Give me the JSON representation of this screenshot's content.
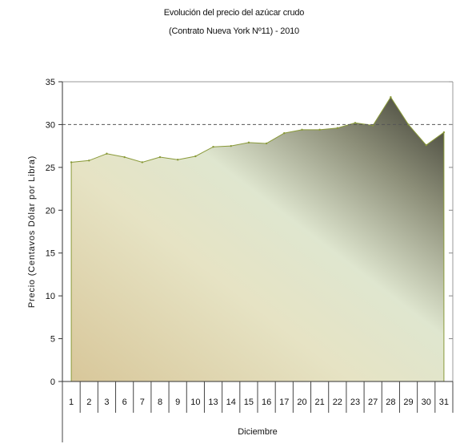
{
  "chart_data": {
    "type": "area",
    "title": "Evolución del precio del azúcar crudo",
    "subtitle": "(Contrato Nueva York Nº11) - 2010",
    "xlabel": "Diciembre",
    "ylabel": "Precio (Centavos Dólar por Libra)",
    "ylim": [
      0,
      35
    ],
    "yticks": [
      0,
      5,
      10,
      15,
      20,
      25,
      30,
      35
    ],
    "reference_line": 30,
    "grid": false,
    "categories": [
      "1",
      "2",
      "3",
      "6",
      "7",
      "8",
      "9",
      "10",
      "13",
      "14",
      "15",
      "16",
      "17",
      "20",
      "21",
      "22",
      "23",
      "27",
      "28",
      "29",
      "30",
      "31"
    ],
    "values": [
      25.6,
      25.8,
      26.6,
      26.2,
      25.6,
      26.2,
      25.9,
      26.3,
      27.4,
      27.5,
      27.9,
      27.8,
      29.0,
      29.4,
      29.4,
      29.6,
      30.2,
      29.9,
      33.2,
      30.0,
      27.6,
      29.1
    ],
    "colors": {
      "area_dark": "#3a3a30",
      "area_mid": "#e4e9d2",
      "area_light": "#d9c89c",
      "area_edge": "#8a9a3a",
      "reference_line": "#555555"
    }
  }
}
